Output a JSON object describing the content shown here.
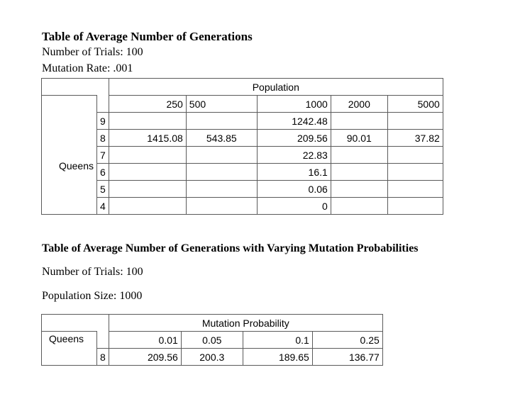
{
  "table1": {
    "title": "Table of Average Number of Generations",
    "trials": "Number of Trials: 100",
    "mutation": "Mutation Rate: .001",
    "group_header": "Population",
    "row_group_label": "Queens",
    "columns": [
      "250",
      "500",
      "1000",
      "2000",
      "5000"
    ],
    "rows": [
      {
        "queens": "9",
        "values": [
          "",
          "",
          "1242.48",
          "",
          ""
        ]
      },
      {
        "queens": "8",
        "values": [
          "1415.08",
          "543.85",
          "209.56",
          "90.01",
          "37.82"
        ]
      },
      {
        "queens": "7",
        "values": [
          "",
          "",
          "22.83",
          "",
          ""
        ]
      },
      {
        "queens": "6",
        "values": [
          "",
          "",
          "16.1",
          "",
          ""
        ]
      },
      {
        "queens": "5",
        "values": [
          "",
          "",
          "0.06",
          "",
          ""
        ]
      },
      {
        "queens": "4",
        "values": [
          "",
          "",
          "0",
          "",
          ""
        ]
      }
    ]
  },
  "table2": {
    "title": "Table of Average Number of Generations with Varying Mutation Probabilities",
    "trials": "Number of Trials: 100",
    "population": "Population Size: 1000",
    "group_header": "Mutation Probability",
    "row_group_label": "Queens",
    "columns": [
      "0.01",
      "0.05",
      "0.1",
      "0.25"
    ],
    "rows": [
      {
        "queens": "8",
        "values": [
          "209.56",
          "200.3",
          "189.65",
          "136.77"
        ]
      }
    ]
  }
}
